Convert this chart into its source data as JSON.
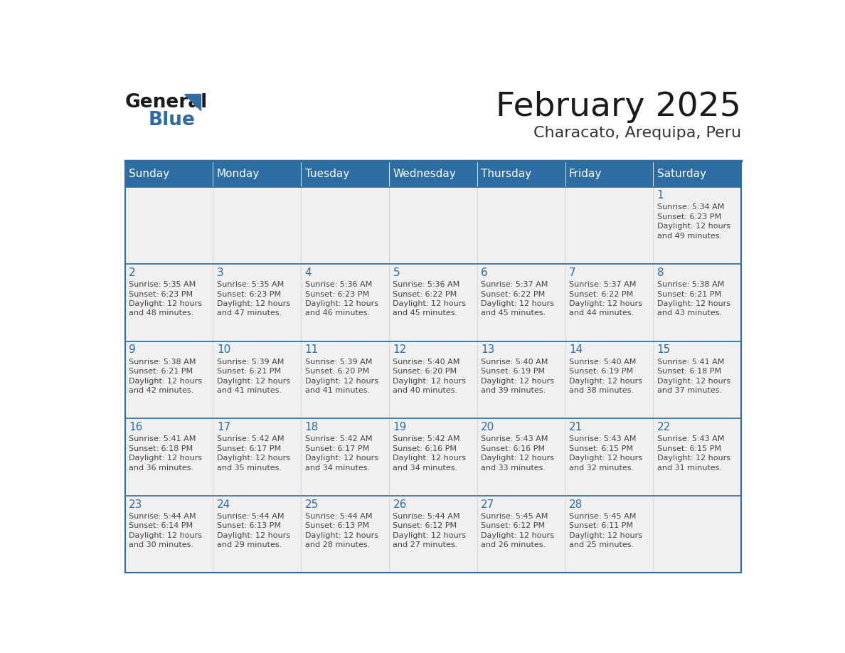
{
  "title": "February 2025",
  "subtitle": "Characato, Arequipa, Peru",
  "days_of_week": [
    "Sunday",
    "Monday",
    "Tuesday",
    "Wednesday",
    "Thursday",
    "Friday",
    "Saturday"
  ],
  "header_bg": "#2E6DA4",
  "header_text": "#FFFFFF",
  "cell_bg_light": "#F0F0F0",
  "border_color": "#2E6DA4",
  "row_border_color": "#2E6DA4",
  "text_color": "#444444",
  "day_number_color": "#2E6DA4",
  "title_color": "#1a1a1a",
  "subtitle_color": "#333333",
  "logo_general_color": "#1a1a1a",
  "logo_blue_color": "#2E6DA4",
  "logo_triangle_color": "#2E6DA4",
  "calendar": [
    [
      null,
      null,
      null,
      null,
      null,
      null,
      {
        "day": 1,
        "sunrise": "5:34 AM",
        "sunset": "6:23 PM",
        "daylight_minutes": "49"
      }
    ],
    [
      {
        "day": 2,
        "sunrise": "5:35 AM",
        "sunset": "6:23 PM",
        "daylight_minutes": "48"
      },
      {
        "day": 3,
        "sunrise": "5:35 AM",
        "sunset": "6:23 PM",
        "daylight_minutes": "47"
      },
      {
        "day": 4,
        "sunrise": "5:36 AM",
        "sunset": "6:23 PM",
        "daylight_minutes": "46"
      },
      {
        "day": 5,
        "sunrise": "5:36 AM",
        "sunset": "6:22 PM",
        "daylight_minutes": "45"
      },
      {
        "day": 6,
        "sunrise": "5:37 AM",
        "sunset": "6:22 PM",
        "daylight_minutes": "45"
      },
      {
        "day": 7,
        "sunrise": "5:37 AM",
        "sunset": "6:22 PM",
        "daylight_minutes": "44"
      },
      {
        "day": 8,
        "sunrise": "5:38 AM",
        "sunset": "6:21 PM",
        "daylight_minutes": "43"
      }
    ],
    [
      {
        "day": 9,
        "sunrise": "5:38 AM",
        "sunset": "6:21 PM",
        "daylight_minutes": "42"
      },
      {
        "day": 10,
        "sunrise": "5:39 AM",
        "sunset": "6:21 PM",
        "daylight_minutes": "41"
      },
      {
        "day": 11,
        "sunrise": "5:39 AM",
        "sunset": "6:20 PM",
        "daylight_minutes": "41"
      },
      {
        "day": 12,
        "sunrise": "5:40 AM",
        "sunset": "6:20 PM",
        "daylight_minutes": "40"
      },
      {
        "day": 13,
        "sunrise": "5:40 AM",
        "sunset": "6:19 PM",
        "daylight_minutes": "39"
      },
      {
        "day": 14,
        "sunrise": "5:40 AM",
        "sunset": "6:19 PM",
        "daylight_minutes": "38"
      },
      {
        "day": 15,
        "sunrise": "5:41 AM",
        "sunset": "6:18 PM",
        "daylight_minutes": "37"
      }
    ],
    [
      {
        "day": 16,
        "sunrise": "5:41 AM",
        "sunset": "6:18 PM",
        "daylight_minutes": "36"
      },
      {
        "day": 17,
        "sunrise": "5:42 AM",
        "sunset": "6:17 PM",
        "daylight_minutes": "35"
      },
      {
        "day": 18,
        "sunrise": "5:42 AM",
        "sunset": "6:17 PM",
        "daylight_minutes": "34"
      },
      {
        "day": 19,
        "sunrise": "5:42 AM",
        "sunset": "6:16 PM",
        "daylight_minutes": "34"
      },
      {
        "day": 20,
        "sunrise": "5:43 AM",
        "sunset": "6:16 PM",
        "daylight_minutes": "33"
      },
      {
        "day": 21,
        "sunrise": "5:43 AM",
        "sunset": "6:15 PM",
        "daylight_minutes": "32"
      },
      {
        "day": 22,
        "sunrise": "5:43 AM",
        "sunset": "6:15 PM",
        "daylight_minutes": "31"
      }
    ],
    [
      {
        "day": 23,
        "sunrise": "5:44 AM",
        "sunset": "6:14 PM",
        "daylight_minutes": "30"
      },
      {
        "day": 24,
        "sunrise": "5:44 AM",
        "sunset": "6:13 PM",
        "daylight_minutes": "29"
      },
      {
        "day": 25,
        "sunrise": "5:44 AM",
        "sunset": "6:13 PM",
        "daylight_minutes": "28"
      },
      {
        "day": 26,
        "sunrise": "5:44 AM",
        "sunset": "6:12 PM",
        "daylight_minutes": "27"
      },
      {
        "day": 27,
        "sunrise": "5:45 AM",
        "sunset": "6:12 PM",
        "daylight_minutes": "26"
      },
      {
        "day": 28,
        "sunrise": "5:45 AM",
        "sunset": "6:11 PM",
        "daylight_minutes": "25"
      },
      null
    ]
  ],
  "n_rows": 5,
  "n_cols": 7
}
